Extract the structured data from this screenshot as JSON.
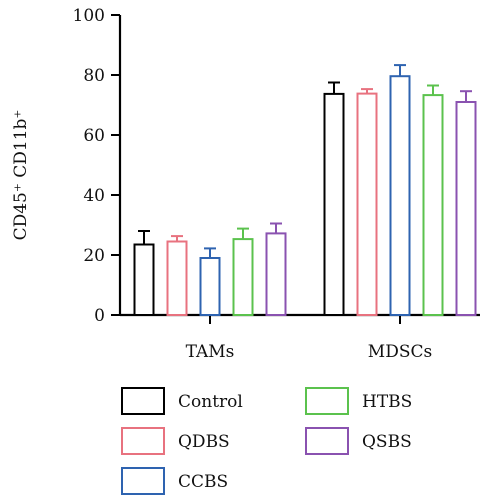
{
  "chart_data": {
    "type": "bar",
    "categories": [
      "TAMs",
      "MDSCs"
    ],
    "series": [
      {
        "name": "Control",
        "color": "#000000",
        "values": [
          23.5,
          73.7
        ],
        "errors": [
          4.5,
          3.8
        ]
      },
      {
        "name": "QDBS",
        "color": "#e8727f",
        "values": [
          24.5,
          73.8
        ],
        "errors": [
          1.8,
          1.5
        ]
      },
      {
        "name": "CCBS",
        "color": "#2e63b0",
        "values": [
          19.0,
          79.6
        ],
        "errors": [
          3.2,
          3.7
        ]
      },
      {
        "name": "HTBS",
        "color": "#5bc24d",
        "values": [
          25.3,
          73.3
        ],
        "errors": [
          3.5,
          3.2
        ]
      },
      {
        "name": "QSBS",
        "color": "#8a52b0",
        "values": [
          27.2,
          71.0
        ],
        "errors": [
          3.3,
          3.6
        ]
      }
    ],
    "ylabel": "CD45⁺ CD11b⁺",
    "ylim": [
      0,
      100
    ],
    "yticks": [
      0,
      20,
      40,
      60,
      80,
      100
    ],
    "legend_position": "bottom",
    "grid": false
  }
}
